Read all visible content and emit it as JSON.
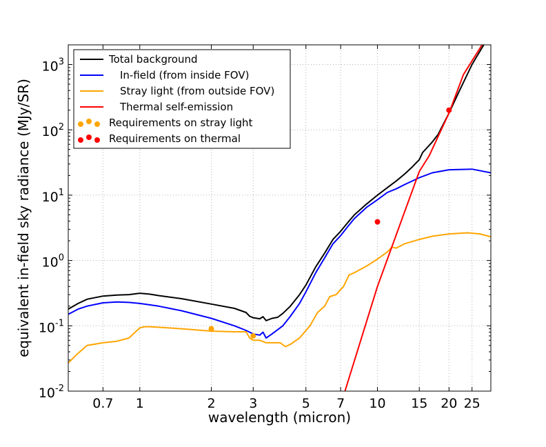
{
  "chart_data": {
    "type": "line",
    "title": "",
    "xlabel": "wavelength (micron)",
    "ylabel": "equivalent in-field sky radiance (MJy/SR)",
    "xscale": "log",
    "yscale": "log",
    "xlim": [
      0.5,
      30
    ],
    "ylim": [
      0.01,
      2000
    ],
    "xticks": [
      0.7,
      1,
      2,
      3,
      5,
      7,
      10,
      15,
      20,
      25
    ],
    "xtick_labels": [
      "0.7",
      "1",
      "2",
      "3",
      "5",
      "7",
      "10",
      "15",
      "20",
      "25"
    ],
    "yticks": [
      {
        "value": 0.01,
        "base": "10",
        "exp": "-2"
      },
      {
        "value": 0.1,
        "base": "10",
        "exp": "-1"
      },
      {
        "value": 1,
        "base": "10",
        "exp": "0"
      },
      {
        "value": 10,
        "base": "10",
        "exp": "1"
      },
      {
        "value": 100,
        "base": "10",
        "exp": "2"
      },
      {
        "value": 1000,
        "base": "10",
        "exp": "3"
      }
    ],
    "grid": true,
    "legend_position": "top-left",
    "series": [
      {
        "name": "Total background",
        "color": "#000000",
        "points": [
          [
            0.5,
            0.18
          ],
          [
            0.55,
            0.22
          ],
          [
            0.6,
            0.255
          ],
          [
            0.7,
            0.285
          ],
          [
            0.8,
            0.295
          ],
          [
            0.9,
            0.3
          ],
          [
            1.0,
            0.315
          ],
          [
            1.1,
            0.305
          ],
          [
            1.2,
            0.29
          ],
          [
            1.5,
            0.26
          ],
          [
            2.0,
            0.215
          ],
          [
            2.5,
            0.185
          ],
          [
            2.8,
            0.16
          ],
          [
            2.9,
            0.14
          ],
          [
            3.0,
            0.133
          ],
          [
            3.2,
            0.128
          ],
          [
            3.3,
            0.138
          ],
          [
            3.4,
            0.12
          ],
          [
            3.6,
            0.13
          ],
          [
            3.8,
            0.135
          ],
          [
            4.0,
            0.155
          ],
          [
            4.3,
            0.2
          ],
          [
            4.7,
            0.3
          ],
          [
            5.0,
            0.42
          ],
          [
            5.5,
            0.8
          ],
          [
            6.0,
            1.3
          ],
          [
            6.5,
            2.1
          ],
          [
            7.0,
            2.8
          ],
          [
            7.5,
            3.8
          ],
          [
            8.0,
            5.0
          ],
          [
            9.0,
            7.3
          ],
          [
            10.0,
            10.0
          ],
          [
            11.0,
            13.0
          ],
          [
            12.0,
            16.5
          ],
          [
            13.0,
            21.0
          ],
          [
            14.0,
            27.0
          ],
          [
            15.0,
            35.0
          ],
          [
            15.5,
            45.0
          ],
          [
            17.0,
            65.0
          ],
          [
            18.0,
            85.0
          ],
          [
            20.0,
            180.0
          ],
          [
            22.0,
            380.0
          ],
          [
            25.0,
            1000.0
          ],
          [
            28.0,
            2000.0
          ],
          [
            28.5,
            2200.0
          ]
        ]
      },
      {
        "name": "In-field (from inside FOV)",
        "color": "#0000ff",
        "points": [
          [
            0.5,
            0.15
          ],
          [
            0.55,
            0.18
          ],
          [
            0.6,
            0.2
          ],
          [
            0.7,
            0.225
          ],
          [
            0.8,
            0.232
          ],
          [
            0.9,
            0.228
          ],
          [
            1.0,
            0.22
          ],
          [
            1.2,
            0.2
          ],
          [
            1.5,
            0.17
          ],
          [
            2.0,
            0.13
          ],
          [
            2.5,
            0.1
          ],
          [
            2.8,
            0.085
          ],
          [
            3.0,
            0.075
          ],
          [
            3.2,
            0.072
          ],
          [
            3.3,
            0.08
          ],
          [
            3.4,
            0.065
          ],
          [
            3.6,
            0.075
          ],
          [
            4.0,
            0.1
          ],
          [
            4.3,
            0.14
          ],
          [
            4.7,
            0.22
          ],
          [
            5.0,
            0.33
          ],
          [
            5.5,
            0.65
          ],
          [
            6.0,
            1.1
          ],
          [
            6.5,
            1.8
          ],
          [
            7.0,
            2.4
          ],
          [
            7.5,
            3.3
          ],
          [
            8.0,
            4.4
          ],
          [
            9.0,
            6.5
          ],
          [
            10.0,
            8.5
          ],
          [
            11.0,
            11.0
          ],
          [
            12.0,
            12.5
          ],
          [
            13.0,
            14.5
          ],
          [
            15.0,
            18.5
          ],
          [
            17.0,
            22.0
          ],
          [
            20.0,
            24.5
          ],
          [
            25.0,
            25.0
          ],
          [
            30.0,
            22.0
          ]
        ]
      },
      {
        "name": "Stray light (from outside FOV)",
        "color": "#ffa500",
        "points": [
          [
            0.5,
            0.027
          ],
          [
            0.55,
            0.038
          ],
          [
            0.6,
            0.05
          ],
          [
            0.7,
            0.055
          ],
          [
            0.8,
            0.058
          ],
          [
            0.9,
            0.065
          ],
          [
            1.0,
            0.093
          ],
          [
            1.05,
            0.097
          ],
          [
            1.1,
            0.097
          ],
          [
            1.5,
            0.09
          ],
          [
            2.0,
            0.083
          ],
          [
            2.5,
            0.081
          ],
          [
            2.8,
            0.081
          ],
          [
            2.9,
            0.065
          ],
          [
            3.0,
            0.06
          ],
          [
            3.2,
            0.06
          ],
          [
            3.4,
            0.055
          ],
          [
            3.6,
            0.055
          ],
          [
            3.9,
            0.055
          ],
          [
            4.1,
            0.048
          ],
          [
            4.3,
            0.052
          ],
          [
            4.7,
            0.065
          ],
          [
            5.2,
            0.1
          ],
          [
            5.6,
            0.16
          ],
          [
            6.0,
            0.2
          ],
          [
            6.3,
            0.28
          ],
          [
            6.7,
            0.3
          ],
          [
            7.2,
            0.4
          ],
          [
            7.6,
            0.6
          ],
          [
            8.0,
            0.65
          ],
          [
            9.0,
            0.82
          ],
          [
            10.0,
            1.05
          ],
          [
            11.0,
            1.35
          ],
          [
            11.5,
            1.6
          ],
          [
            12.0,
            1.55
          ],
          [
            13.0,
            1.8
          ],
          [
            15.0,
            2.1
          ],
          [
            17.0,
            2.35
          ],
          [
            20.0,
            2.55
          ],
          [
            24.0,
            2.65
          ],
          [
            27.0,
            2.55
          ],
          [
            30.0,
            2.3
          ]
        ]
      },
      {
        "name": "Thermal self-emission",
        "color": "#ff0000",
        "points": [
          [
            7.3,
            0.01
          ],
          [
            10.0,
            0.4
          ],
          [
            15.0,
            23.0
          ],
          [
            16.5,
            40.0
          ],
          [
            20.0,
            180.0
          ],
          [
            23.0,
            700.0
          ],
          [
            28.0,
            2200.0
          ]
        ]
      }
    ],
    "markers": [
      {
        "name": "Requirements on stray light",
        "color": "#ffa500",
        "points": [
          [
            2.0,
            0.09
          ],
          [
            3.0,
            0.07
          ]
        ]
      },
      {
        "name": "Requirements on thermal",
        "color": "#ff0000",
        "points": [
          [
            10.0,
            3.9
          ],
          [
            20.0,
            200.0
          ]
        ]
      }
    ]
  }
}
